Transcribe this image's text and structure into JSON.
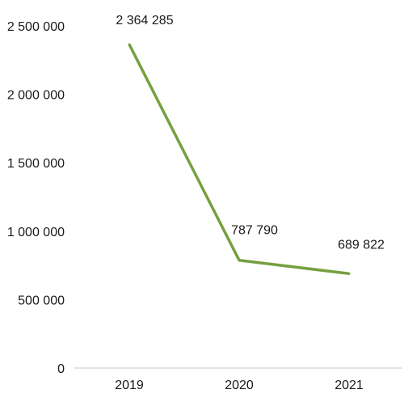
{
  "chart_data": {
    "type": "line",
    "title": "",
    "xlabel": "",
    "ylabel": "",
    "categories": [
      "2019",
      "2020",
      "2021"
    ],
    "series": [
      {
        "values": [
          2364285,
          787790,
          689822
        ],
        "color": "#76a03f"
      }
    ],
    "data_labels": [
      "2 364 285",
      "787 790",
      "689 822"
    ],
    "yticks": [
      0,
      500000,
      1000000,
      1500000,
      2000000,
      2500000
    ],
    "ytick_labels": [
      "0",
      "500 000",
      "1 000 000",
      "1 500 000",
      "2 000 000",
      "2 500 000"
    ],
    "ylim": [
      0,
      2500000
    ],
    "grid": false,
    "legend": "none"
  }
}
